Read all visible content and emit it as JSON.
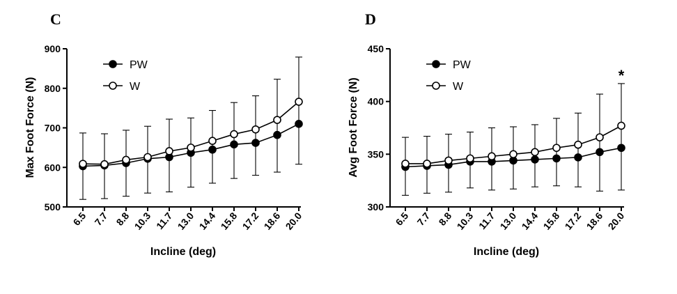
{
  "chart_data": [
    {
      "panel_label": "C",
      "type": "line",
      "xlabel": "Incline (deg)",
      "ylabel": "Max Foot Force (N)",
      "categories": [
        "6.5",
        "7.7",
        "8.8",
        "10.3",
        "11.7",
        "13.0",
        "14.4",
        "15.8",
        "17.2",
        "18.6",
        "20.0"
      ],
      "ylim": [
        500,
        900
      ],
      "yticks": [
        500,
        600,
        700,
        800,
        900
      ],
      "grid": false,
      "legend_position": "top-left",
      "series": [
        {
          "name": "PW",
          "marker": "filled-circle",
          "values": [
            603,
            605,
            611,
            622,
            626,
            637,
            645,
            658,
            662,
            682,
            710
          ],
          "error": [
            0,
            0,
            0,
            0,
            0,
            0,
            0,
            0,
            0,
            0,
            0
          ]
        },
        {
          "name": "W",
          "marker": "open-circle",
          "values": [
            609,
            608,
            619,
            626,
            641,
            650,
            667,
            684,
            696,
            720,
            766
          ],
          "error": [
            78,
            77,
            75,
            78,
            81,
            75,
            77,
            80,
            85,
            103,
            113
          ]
        }
      ],
      "lower_error": [
        519,
        521,
        527,
        535,
        538,
        550,
        560,
        572,
        580,
        588,
        608
      ],
      "annotations": []
    },
    {
      "panel_label": "D",
      "type": "line",
      "xlabel": "Incline (deg)",
      "ylabel": "Avg Foot Force (N)",
      "categories": [
        "6.5",
        "7.7",
        "8.8",
        "10.3",
        "11.7",
        "13.0",
        "14.4",
        "15.8",
        "17.2",
        "18.6",
        "20.0"
      ],
      "ylim": [
        300,
        450
      ],
      "yticks": [
        300,
        350,
        400,
        450
      ],
      "grid": false,
      "legend_position": "top-left",
      "series": [
        {
          "name": "PW",
          "marker": "filled-circle",
          "values": [
            338,
            339,
            340,
            343,
            343,
            344,
            345,
            346,
            347,
            352,
            356
          ]
        },
        {
          "name": "W",
          "marker": "open-circle",
          "values": [
            341,
            341,
            344,
            346,
            348,
            350,
            352,
            356,
            359,
            366,
            377
          ]
        }
      ],
      "upper_error": [
        366,
        367,
        369,
        371,
        375,
        376,
        378,
        384,
        389,
        407,
        417
      ],
      "lower_error": [
        311,
        313,
        314,
        318,
        316,
        317,
        319,
        320,
        319,
        315,
        316
      ],
      "annotations": [
        {
          "category": "20.0",
          "text": "*"
        }
      ]
    }
  ]
}
